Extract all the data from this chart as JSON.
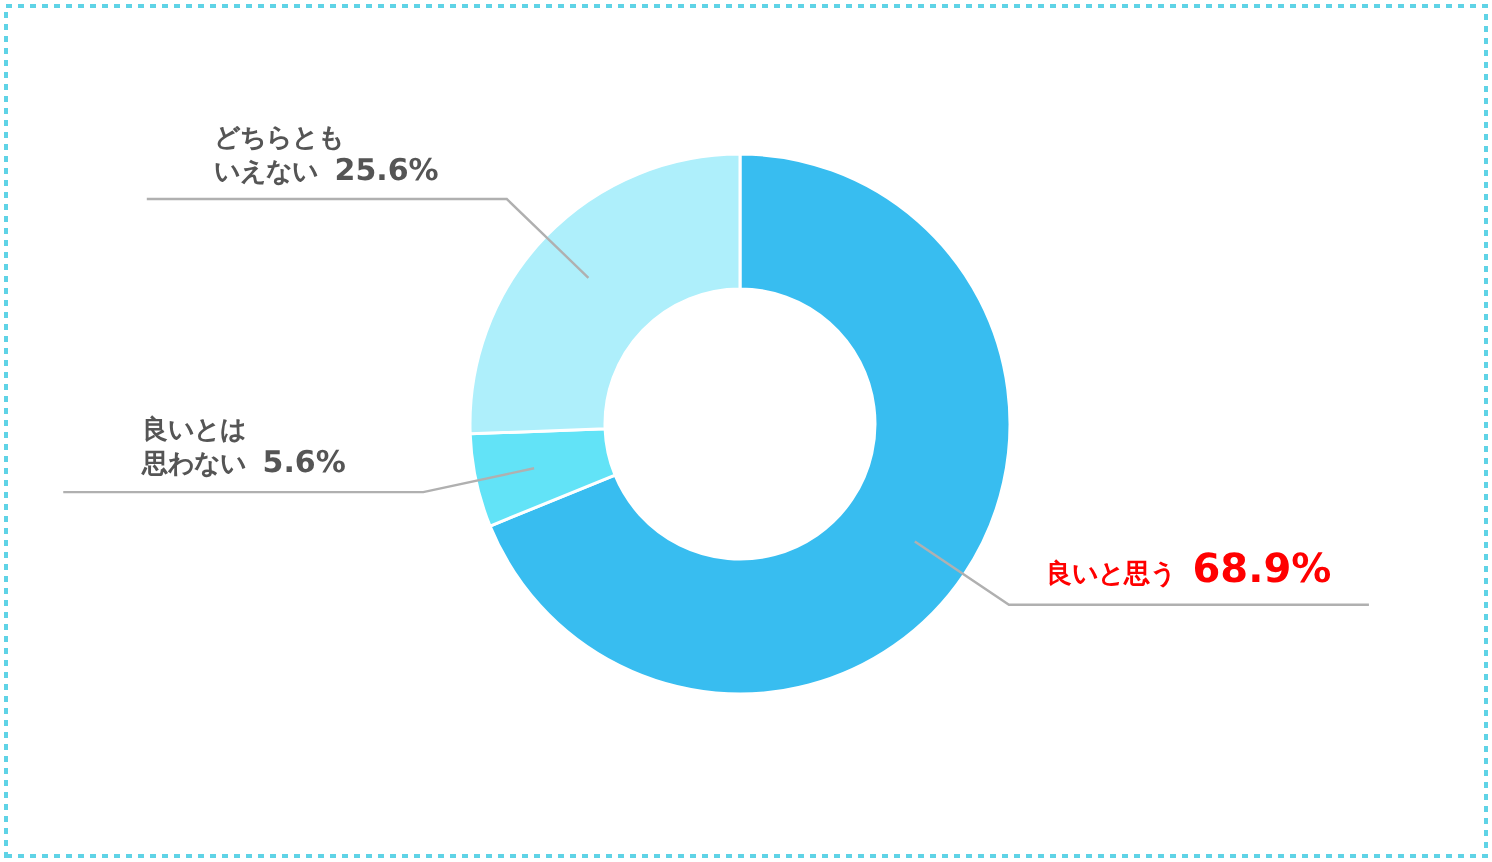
{
  "chart_data": {
    "type": "donut",
    "categories": [
      "良いと思う",
      "良いとは思わない",
      "どちらともいえない"
    ],
    "values": [
      68.9,
      5.6,
      25.6
    ],
    "colors": [
      "#38bdf0",
      "#62e3f7",
      "#aeeffb"
    ],
    "value_labels": [
      "68.9%",
      "5.6%",
      "25.6%"
    ],
    "legend": false
  }
}
